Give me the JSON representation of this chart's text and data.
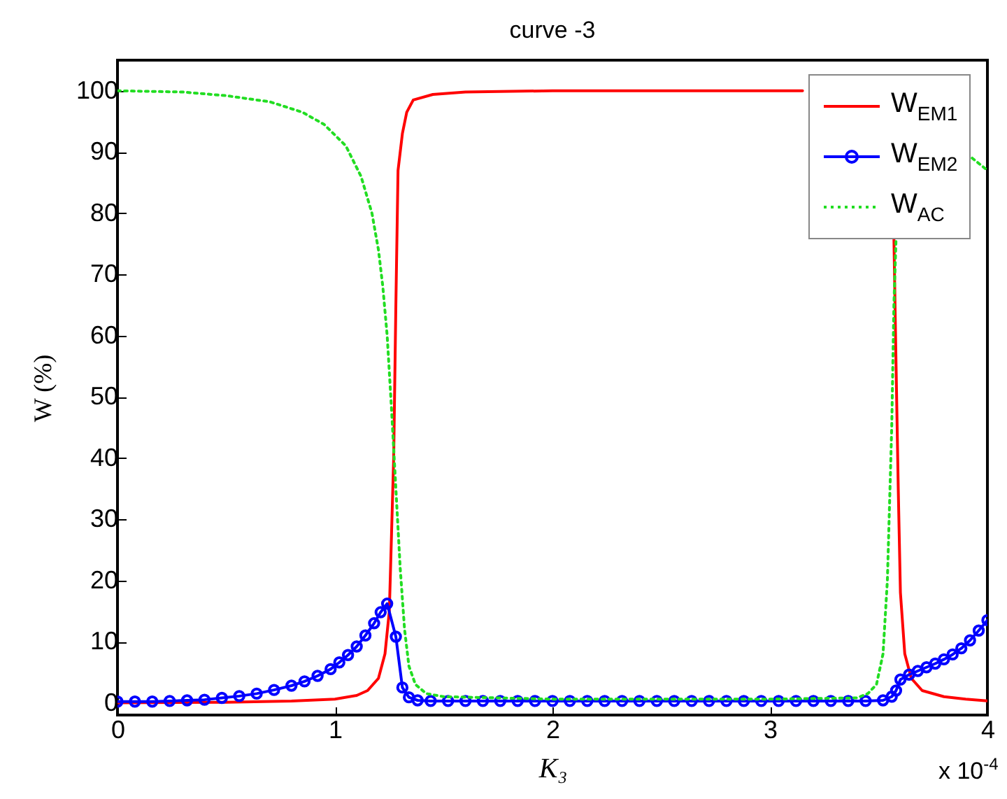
{
  "chart_data": {
    "type": "line",
    "title": "curve -3",
    "xlabel": "K₃",
    "ylabel": "W (%)",
    "annotations": [
      "x 10$^{-4}$"
    ],
    "xlim": [
      0,
      4
    ],
    "xticks": [
      0,
      1,
      2,
      3,
      4
    ],
    "ylim": [
      -2,
      105
    ],
    "yticks": [
      0,
      10,
      20,
      30,
      40,
      50,
      60,
      70,
      80,
      90,
      100
    ],
    "grid": false,
    "legend": "top right",
    "series": [
      {
        "name": "W$_{EM1}$",
        "color": "#ff0000",
        "line_style": "solid",
        "marker": "none",
        "x": [
          0,
          0.5,
          0.8,
          1.0,
          1.1,
          1.15,
          1.2,
          1.23,
          1.25,
          1.27,
          1.28,
          1.29,
          1.31,
          1.33,
          1.36,
          1.45,
          1.6,
          2,
          2.5,
          3,
          3.1,
          3.15,
          3.2,
          3.56,
          3.57,
          3.58,
          3.59,
          3.6,
          3.62,
          3.65,
          3.7,
          3.8,
          3.9,
          4
        ],
        "values": [
          0,
          0.1,
          0.3,
          0.6,
          1.2,
          2,
          4,
          8,
          15,
          40,
          65,
          87,
          93,
          96.5,
          98.5,
          99.4,
          99.8,
          100,
          100,
          100,
          100,
          100,
          null,
          null,
          76,
          55,
          35,
          18,
          8,
          4,
          2,
          1,
          0.6,
          0.3
        ]
      },
      {
        "name": "W$_{EM2}$",
        "color": "#0000ff",
        "line_style": "solid",
        "marker": "circle",
        "x": [
          0,
          0.08,
          0.16,
          0.24,
          0.32,
          0.4,
          0.48,
          0.56,
          0.64,
          0.72,
          0.8,
          0.86,
          0.92,
          0.98,
          1.02,
          1.06,
          1.1,
          1.14,
          1.18,
          1.21,
          1.24,
          1.28,
          1.31,
          1.34,
          1.38,
          1.44,
          1.52,
          1.6,
          1.68,
          1.76,
          1.84,
          1.92,
          2.0,
          2.08,
          2.16,
          2.24,
          2.32,
          2.4,
          2.48,
          2.56,
          2.64,
          2.72,
          2.8,
          2.88,
          2.96,
          3.04,
          3.12,
          3.2,
          3.28,
          3.36,
          3.44,
          3.52,
          3.56,
          3.58,
          3.6,
          3.64,
          3.68,
          3.72,
          3.76,
          3.8,
          3.84,
          3.88,
          3.92,
          3.96,
          4
        ],
        "values": [
          0.2,
          0.2,
          0.2,
          0.3,
          0.4,
          0.5,
          0.8,
          1.1,
          1.5,
          2.1,
          2.8,
          3.5,
          4.4,
          5.5,
          6.6,
          7.8,
          9.2,
          11,
          13,
          14.8,
          16.2,
          10.8,
          2.5,
          0.9,
          0.4,
          0.3,
          0.3,
          0.3,
          0.3,
          0.3,
          0.3,
          0.3,
          0.3,
          0.3,
          0.3,
          0.3,
          0.3,
          0.3,
          0.3,
          0.3,
          0.3,
          0.3,
          0.3,
          0.3,
          0.3,
          0.3,
          0.3,
          0.3,
          0.3,
          0.3,
          0.3,
          0.4,
          1,
          2,
          3.8,
          4.6,
          5.2,
          5.8,
          6.4,
          7.1,
          7.9,
          8.9,
          10.2,
          11.8,
          13.5
        ]
      },
      {
        "name": "W$_{AC}$",
        "color": "#22dd22",
        "line_style": "dotted",
        "marker": "none",
        "x": [
          0,
          0.3,
          0.5,
          0.7,
          0.85,
          0.95,
          1.05,
          1.12,
          1.17,
          1.2,
          1.22,
          1.24,
          1.26,
          1.28,
          1.3,
          1.32,
          1.34,
          1.37,
          1.42,
          1.5,
          2,
          3,
          3.4,
          3.45,
          3.49,
          3.52,
          3.54,
          3.56,
          3.57,
          3.58,
          3.6,
          3.9,
          3.93,
          4
        ],
        "values": [
          100,
          99.8,
          99.2,
          98.2,
          96.5,
          94.5,
          91,
          86,
          80,
          74,
          68,
          60,
          48,
          35,
          22,
          12,
          6,
          3,
          1.5,
          1,
          0.6,
          0.6,
          0.8,
          1.5,
          3,
          8,
          20,
          45,
          65,
          76,
          null,
          null,
          89,
          87
        ]
      }
    ]
  }
}
